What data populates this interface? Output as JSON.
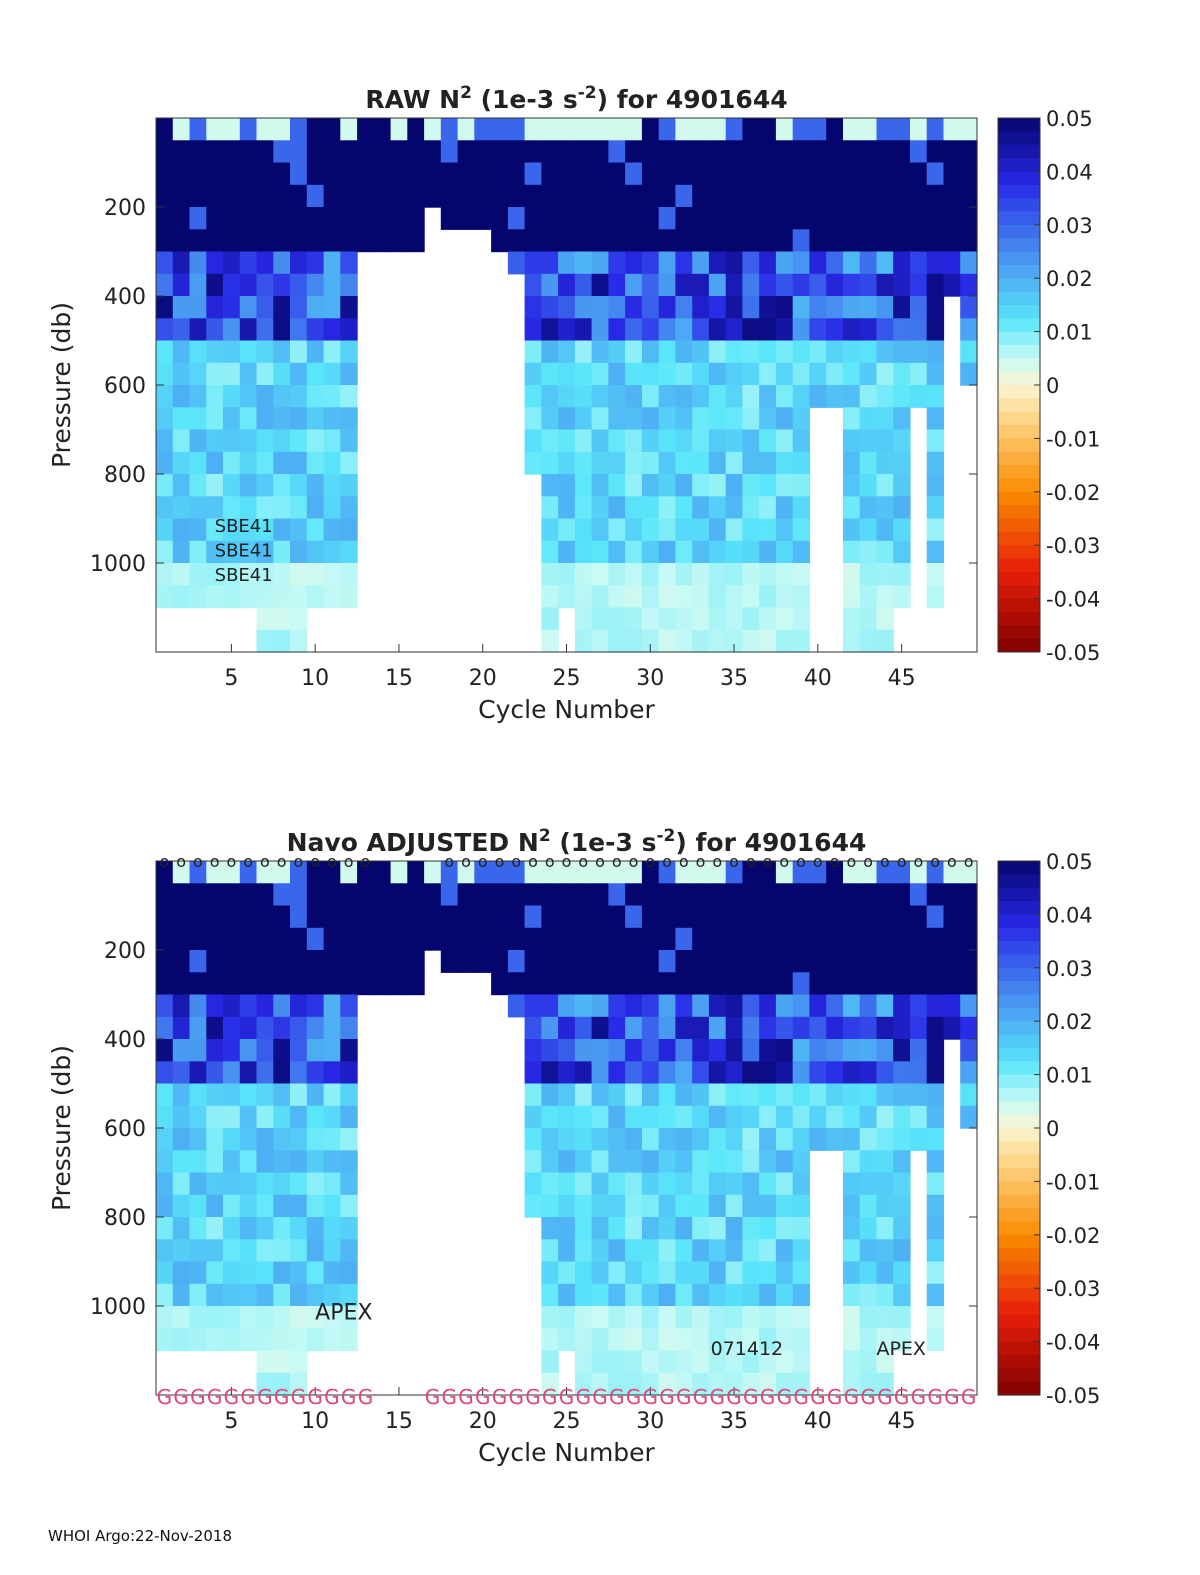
{
  "chart_data": [
    {
      "type": "heatmap",
      "title_prefix": "RAW N",
      "title_sup": "2",
      "title_mid": " (1e-3 s",
      "title_sup2": "-2",
      "title_suffix": ") for 4901644",
      "xlabel": "Cycle Number",
      "ylabel": "Pressure (db)",
      "xlim": [
        1,
        49
      ],
      "ylim": [
        1200,
        0
      ],
      "xticks": [
        "5",
        "10",
        "15",
        "20",
        "25",
        "30",
        "35",
        "40",
        "45"
      ],
      "yticks": [
        "200",
        "400",
        "600",
        "800",
        "1000"
      ],
      "colorbar": {
        "range": [
          -0.05,
          0.05
        ],
        "ticks": [
          "0.05",
          "0.04",
          "0.03",
          "0.02",
          "0.01",
          "0",
          "-0.01",
          "-0.02",
          "-0.03",
          "-0.04",
          "-0.05"
        ]
      },
      "annotations": [
        "SBE41",
        "SBE41",
        "SBE41"
      ],
      "description_values": {
        "upper_layer_0_to_250db": 0.05,
        "layer_250_to_450db": 0.03,
        "layer_450_to_1100db": 0.012,
        "deep_below_1000db": 0.006,
        "missing_cycles": [
          13,
          14,
          15,
          16,
          17,
          18,
          19,
          20,
          21,
          22
        ]
      }
    },
    {
      "type": "heatmap",
      "title_prefix": "Navo  ADJUSTED N",
      "title_sup": "2",
      "title_mid": " (1e-3 s",
      "title_sup2": "-2",
      "title_suffix": ") for 4901644",
      "xlabel": "Cycle Number",
      "ylabel": "Pressure (db)",
      "xlim": [
        1,
        49
      ],
      "ylim": [
        1200,
        0
      ],
      "xticks": [
        "5",
        "10",
        "15",
        "20",
        "25",
        "30",
        "35",
        "40",
        "45"
      ],
      "yticks": [
        "200",
        "400",
        "600",
        "800",
        "1000"
      ],
      "colorbar": {
        "range": [
          -0.05,
          0.05
        ],
        "ticks": [
          "0.05",
          "0.04",
          "0.03",
          "0.02",
          "0.01",
          "0",
          "-0.01",
          "-0.02",
          "-0.03",
          "-0.04",
          "-0.05"
        ]
      },
      "annotations": [
        "APEX",
        "071412",
        "APEX"
      ],
      "top_markers": "o",
      "top_marker_cycles": [
        1,
        2,
        3,
        4,
        5,
        6,
        7,
        8,
        9,
        10,
        11,
        12,
        13,
        18,
        19,
        20,
        21,
        22,
        23,
        24,
        25,
        26,
        27,
        28,
        29,
        30,
        31,
        32,
        33,
        34,
        35,
        36,
        37,
        38,
        39,
        40,
        41,
        42,
        43,
        44,
        45,
        46,
        47,
        48,
        49
      ],
      "bottom_markers": "G",
      "bottom_marker_cycles": [
        1,
        2,
        3,
        4,
        5,
        6,
        7,
        8,
        9,
        10,
        11,
        12,
        13,
        17,
        18,
        19,
        20,
        21,
        22,
        23,
        24,
        25,
        26,
        27,
        28,
        29,
        30,
        31,
        32,
        33,
        34,
        35,
        36,
        37,
        38,
        39,
        40,
        41,
        42,
        43,
        44,
        45,
        46,
        47,
        48,
        49
      ]
    }
  ],
  "footer": "WHOI Argo:22-Nov-2018"
}
